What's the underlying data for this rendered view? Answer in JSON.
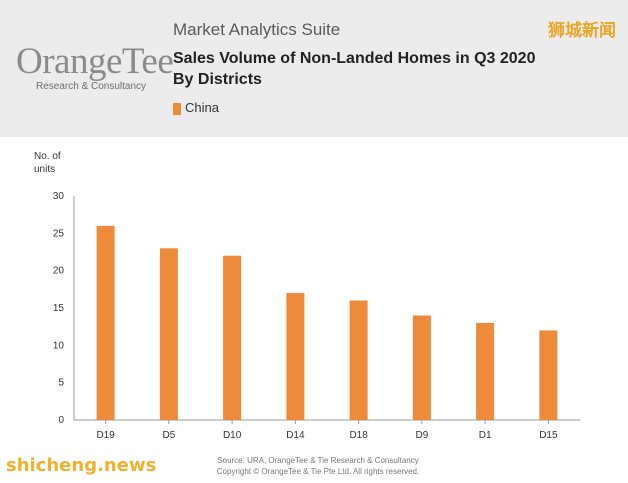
{
  "header": {
    "logo_text": "OrangeTee",
    "logo_sub": "Research & Consultancy",
    "suite": "Market Analytics Suite",
    "title_line1": "Sales Volume of Non-Landed Homes in Q3 2020",
    "title_line2": "By Districts",
    "legend_label": "China",
    "watermark_cn": "狮城新闻"
  },
  "footer": {
    "source": "Source: URA, OrangeTee & Tie Research & Consultancy",
    "copyright": "Copyright © OrangeTee & Tie Pte Ltd. All rights reserved.",
    "site_watermark": "shicheng.news"
  },
  "chart_data": {
    "type": "bar",
    "title": "Sales Volume of Non-Landed Homes in Q3 2020 By Districts",
    "ylabel_line1": "No. of",
    "ylabel_line2": "units",
    "xlabel": "",
    "categories": [
      "D19",
      "D5",
      "D10",
      "D14",
      "D18",
      "D9",
      "D1",
      "D15"
    ],
    "series": [
      {
        "name": "China",
        "values": [
          26,
          23,
          22,
          17,
          16,
          14,
          13,
          12
        ],
        "color": "#ed8b3a"
      }
    ],
    "ylim": [
      0,
      30
    ],
    "yticks": [
      0,
      5,
      10,
      15,
      20,
      25,
      30
    ],
    "grid": false,
    "legend": "top-left"
  }
}
